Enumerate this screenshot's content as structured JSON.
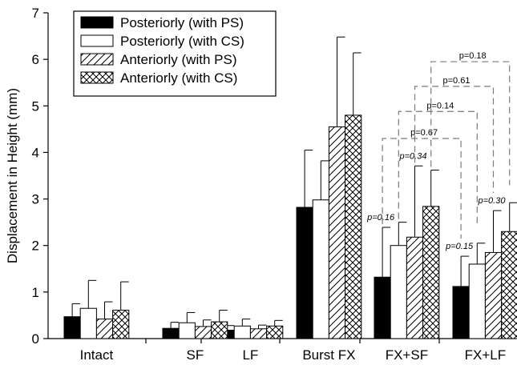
{
  "chart_data": {
    "type": "bar",
    "title": "",
    "xlabel": "",
    "ylabel": "Displacement in Height (mm)",
    "ylim": [
      0,
      7
    ],
    "yticks": [
      0,
      1,
      2,
      3,
      4,
      5,
      6,
      7
    ],
    "grid": false,
    "legend_position": "top-left",
    "categories": [
      "Intact",
      "SF",
      "LF",
      "Burst FX",
      "FX+SF",
      "FX+LF"
    ],
    "series": [
      {
        "name": "Posteriorly (with PS)",
        "fill": "solid-black",
        "values": [
          0.47,
          0.22,
          0.18,
          2.82,
          1.32,
          1.12
        ],
        "errors": [
          0.28,
          0.13,
          0.1,
          1.23,
          1.07,
          0.65
        ]
      },
      {
        "name": "Posteriorly (with CS)",
        "fill": "white",
        "values": [
          0.65,
          0.34,
          0.27,
          2.98,
          2.0,
          1.6
        ],
        "errors": [
          0.6,
          0.22,
          0.15,
          0.84,
          0.5,
          0.45
        ]
      },
      {
        "name": "Anteriorly (with PS)",
        "fill": "diagonal-hatch",
        "values": [
          0.42,
          0.26,
          0.21,
          4.55,
          2.18,
          1.85
        ],
        "errors": [
          0.37,
          0.14,
          0.08,
          1.93,
          1.53,
          0.9
        ]
      },
      {
        "name": "Anteriorly (with CS)",
        "fill": "crosshatch",
        "values": [
          0.61,
          0.36,
          0.27,
          4.8,
          2.84,
          2.3
        ],
        "errors": [
          0.61,
          0.25,
          0.12,
          1.34,
          0.78,
          0.62
        ]
      }
    ],
    "annotations": {
      "above_bar": [
        {
          "text": "p=0.16",
          "category": "FX+SF",
          "series": 0
        },
        {
          "text": "p=0.34",
          "category": "FX+SF",
          "series": 2
        },
        {
          "text": "p=0.15",
          "category": "FX+LF",
          "series": 0
        },
        {
          "text": "p=0.30",
          "category": "FX+LF",
          "series": 2
        }
      ],
      "brackets": [
        {
          "text": "p=0.67",
          "from": {
            "category": "FX+SF",
            "series": 0
          },
          "to": {
            "category": "FX+LF",
            "series": 0
          },
          "level": 4.3
        },
        {
          "text": "p=0.14",
          "from": {
            "category": "FX+SF",
            "series": 1
          },
          "to": {
            "category": "FX+LF",
            "series": 1
          },
          "level": 4.88
        },
        {
          "text": "p=0.61",
          "from": {
            "category": "FX+SF",
            "series": 2
          },
          "to": {
            "category": "FX+LF",
            "series": 2
          },
          "level": 5.42
        },
        {
          "text": "p=0.18",
          "from": {
            "category": "FX+SF",
            "series": 3
          },
          "to": {
            "category": "FX+LF",
            "series": 3
          },
          "level": 5.95
        }
      ]
    }
  }
}
